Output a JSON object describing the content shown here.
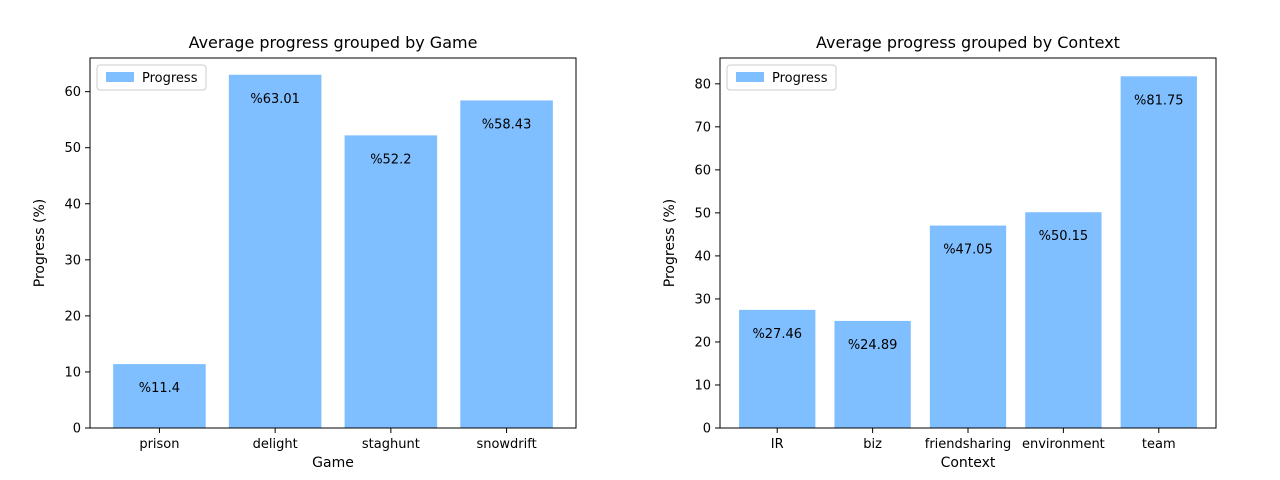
{
  "chart_data": [
    {
      "type": "bar",
      "title": "Average progress grouped by Game",
      "xlabel": "Game",
      "ylabel": "Progress (%)",
      "categories": [
        "prison",
        "delight",
        "staghunt",
        "snowdrift"
      ],
      "series": [
        {
          "name": "Progress",
          "values": [
            11.4,
            63.01,
            52.2,
            58.43
          ]
        }
      ],
      "data_labels": [
        "%11.4",
        "%63.01",
        "%52.2",
        "%58.43"
      ],
      "ylim": [
        0,
        66
      ],
      "yticks": [
        0,
        10,
        20,
        30,
        40,
        50,
        60
      ],
      "grid": false,
      "legend": "top-left",
      "bar_color": "#80bfff"
    },
    {
      "type": "bar",
      "title": "Average progress grouped by Context",
      "xlabel": "Context",
      "ylabel": "Progress (%)",
      "categories": [
        "IR",
        "biz",
        "friendsharing",
        "environment",
        "team"
      ],
      "series": [
        {
          "name": "Progress",
          "values": [
            27.46,
            24.89,
            47.05,
            50.15,
            81.75
          ]
        }
      ],
      "data_labels": [
        "%27.46",
        "%24.89",
        "%47.05",
        "%50.15",
        "%81.75"
      ],
      "ylim": [
        0,
        86
      ],
      "yticks": [
        0,
        10,
        20,
        30,
        40,
        50,
        60,
        70,
        80
      ],
      "grid": false,
      "legend": "top-left",
      "bar_color": "#80bfff"
    }
  ]
}
